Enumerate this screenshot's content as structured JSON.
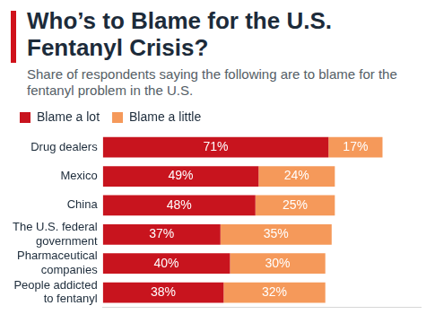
{
  "chart_data": {
    "type": "bar",
    "title": "Who’s to Blame for the U.S. Fentanyl Crisis?",
    "subtitle": "Share of respondents saying the following are to blame for the fentanyl problem in the U.S.",
    "categories": [
      "Drug dealers",
      "Mexico",
      "China",
      "The U.S. federal government",
      "Pharmaceutical companies",
      "People addicted to fentanyl"
    ],
    "series": [
      {
        "name": "Blame a lot",
        "color": "#c8141e",
        "values": [
          71,
          49,
          48,
          37,
          40,
          38
        ],
        "value_labels": [
          "71%",
          "49%",
          "48%",
          "37%",
          "40%",
          "38%"
        ]
      },
      {
        "name": "Blame a little",
        "color": "#f5995a",
        "values": [
          17,
          24,
          25,
          35,
          30,
          32
        ],
        "value_labels": [
          "17%",
          "24%",
          "25%",
          "35%",
          "30%",
          "32%"
        ]
      }
    ],
    "xlim": [
      0,
      100
    ],
    "orientation": "horizontal",
    "stacked": true,
    "data_labels": true,
    "legend": "top",
    "grid": false,
    "tick_labels": "y"
  }
}
